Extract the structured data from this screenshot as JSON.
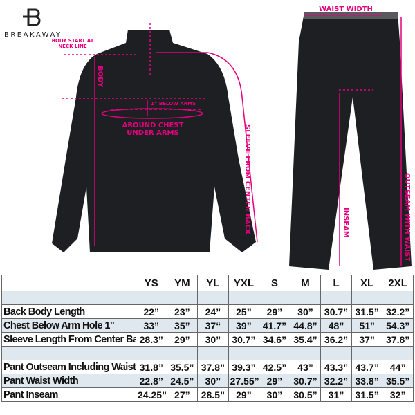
{
  "brand": {
    "name": "BREAKAWAY",
    "logo_letter": "B"
  },
  "annotations": {
    "body_start": "BODY START AT NECK LINE",
    "body": "BODY",
    "below_arms": "1” BELOW ARMS",
    "around_chest": "AROUND CHEST UNDER ARMS",
    "sleeve": "SLEEVE FROM CENTER BACK",
    "waist_width": "WAIST WIDTH",
    "inseam": "INSEAM",
    "outseam": "OUTSEAM WITH WAIST"
  },
  "colors": {
    "accent": "#e6007e",
    "garment": "#1e1f22",
    "row_blue": "#dfe8ef"
  },
  "table": {
    "sizes": [
      "YS",
      "YM",
      "YL",
      "YXL",
      "S",
      "M",
      "L",
      "XL",
      "2XL"
    ],
    "rows": [
      {
        "label": "",
        "values": [
          "",
          "",
          "",
          "",
          "",
          "",
          "",
          "",
          ""
        ],
        "shade": true
      },
      {
        "label": "Back Body Length",
        "values": [
          "22”",
          "23”",
          "24”",
          "25”",
          "29”",
          "30”",
          "30.7”",
          "31.5”",
          "32.2”"
        ],
        "shade": false
      },
      {
        "label": "Chest Below Arm Hole 1\"",
        "values": [
          "33”",
          "35”",
          "37“",
          "39”",
          "41.7”",
          "44.8”",
          "48”",
          "51”",
          "54.3”"
        ],
        "shade": true
      },
      {
        "label": "Sleeve Length From Center Back",
        "values": [
          "28.3”",
          "29”",
          "30”",
          "30.7”",
          "34.6”",
          "35.4”",
          "36.2”",
          "37”",
          "37.8”"
        ],
        "shade": false
      },
      {
        "label": "",
        "values": [
          "",
          "",
          "",
          "",
          "",
          "",
          "",
          "",
          ""
        ],
        "shade": true
      },
      {
        "label": "Pant Outseam Including Waist",
        "values": [
          "31.8”",
          "35.5”",
          "37.8”",
          "39.3”",
          "42.5”",
          "43”",
          "43.3”",
          "43.7”",
          "44”"
        ],
        "shade": false
      },
      {
        "label": "Pant Waist Width",
        "values": [
          "22.8”",
          "24.5”",
          "30”",
          "27.55”",
          "29”",
          "30.7”",
          "32.2”",
          "33.8”",
          "35.5”"
        ],
        "shade": true
      },
      {
        "label": "Pant Inseam",
        "values": [
          "24.25”",
          "27”",
          "28.5”",
          "29”",
          "30”",
          "30.5”",
          "31”",
          "31.5”",
          "32”"
        ],
        "shade": false
      }
    ]
  }
}
